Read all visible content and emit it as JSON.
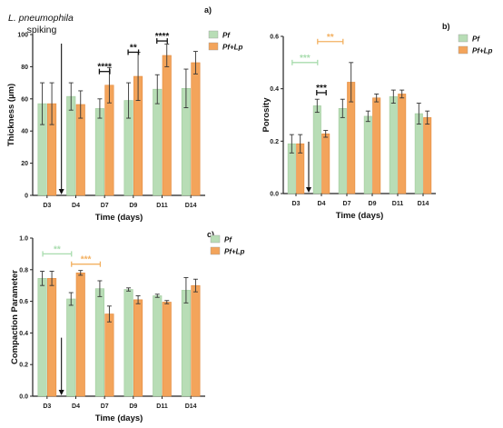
{
  "chart_data": [
    {
      "type": "bar",
      "panel_label": "a)",
      "categories": [
        "D3",
        "D4",
        "D7",
        "D9",
        "D11",
        "D14"
      ],
      "xlabel": "Time (days)",
      "ylabel": "Thickness (µm)",
      "ylim": [
        0,
        100
      ],
      "yticks": [
        0,
        20,
        40,
        60,
        80,
        100
      ],
      "ytick_labels": [
        "0",
        "20",
        "40",
        "60",
        "80",
        "100"
      ],
      "legend_position": "top-right",
      "annotation_title": "L. pneumophila",
      "annotation_sub": "spiking",
      "series": [
        {
          "name": "Pf",
          "color": "#b8ddb6",
          "values": [
            57,
            61.5,
            54,
            59,
            66,
            66.5
          ],
          "errors": [
            13,
            8.5,
            6,
            11,
            9,
            12
          ]
        },
        {
          "name": "Pf+Lp",
          "color": "#f3a45b",
          "values": [
            57,
            56.5,
            68.5,
            74,
            87,
            82.5
          ],
          "errors": [
            13,
            8.5,
            11,
            15,
            7,
            7
          ]
        }
      ],
      "significance": [
        {
          "categories": [
            "D7",
            "D7"
          ],
          "stars": "****",
          "color": "#111111",
          "level": 77
        },
        {
          "categories": [
            "D9",
            "D9"
          ],
          "stars": "**",
          "color": "#111111",
          "level": 89
        },
        {
          "categories": [
            "D11",
            "D11"
          ],
          "stars": "****",
          "color": "#111111",
          "level": 96
        }
      ]
    },
    {
      "type": "bar",
      "panel_label": "b)",
      "categories": [
        "D3",
        "D4",
        "D7",
        "D9",
        "D11",
        "D14"
      ],
      "xlabel": "Time (days)",
      "ylabel": "Porosity",
      "ylim": [
        0,
        0.6
      ],
      "yticks": [
        0,
        0.2,
        0.4,
        0.6
      ],
      "ytick_labels": [
        "0.0",
        "0.2",
        "0.4",
        "0.6"
      ],
      "legend_position": "top-right",
      "series": [
        {
          "name": "Pf",
          "color": "#b8ddb6",
          "values": [
            0.19,
            0.335,
            0.325,
            0.295,
            0.37,
            0.305
          ],
          "errors": [
            0.035,
            0.025,
            0.035,
            0.02,
            0.025,
            0.04
          ]
        },
        {
          "name": "Pf+Lp",
          "color": "#f3a45b",
          "values": [
            0.19,
            0.228,
            0.425,
            0.365,
            0.38,
            0.29
          ],
          "errors": [
            0.035,
            0.013,
            0.075,
            0.015,
            0.015,
            0.025
          ]
        }
      ],
      "significance": [
        {
          "categories": [
            "D3",
            "D4"
          ],
          "stars": "***",
          "color": "#a8dcae",
          "level": 0.5
        },
        {
          "categories": [
            "D4",
            "D7"
          ],
          "stars": "**",
          "color": "#f3b060",
          "level": 0.58
        },
        {
          "categories": [
            "D4",
            "D4"
          ],
          "stars": "***",
          "color": "#111111",
          "level": 0.385
        }
      ]
    },
    {
      "type": "bar",
      "panel_label": "c)",
      "categories": [
        "D3",
        "D4",
        "D7",
        "D9",
        "D11",
        "D14"
      ],
      "xlabel": "Time (days)",
      "ylabel": "Compaction Parameter",
      "ylim": [
        0,
        1
      ],
      "yticks": [
        0,
        0.2,
        0.4,
        0.6,
        0.8,
        1.0
      ],
      "ytick_labels": [
        "0.0",
        "0.2",
        "0.4",
        "0.6",
        "0.8",
        "1.0"
      ],
      "legend_position": "top-right",
      "series": [
        {
          "name": "Pf",
          "color": "#b8ddb6",
          "values": [
            0.745,
            0.615,
            0.68,
            0.675,
            0.635,
            0.67
          ],
          "errors": [
            0.045,
            0.04,
            0.05,
            0.01,
            0.01,
            0.08
          ]
        },
        {
          "name": "Pf+Lp",
          "color": "#f3a45b",
          "values": [
            0.745,
            0.78,
            0.52,
            0.61,
            0.595,
            0.7
          ],
          "errors": [
            0.045,
            0.015,
            0.05,
            0.025,
            0.01,
            0.04
          ]
        }
      ],
      "significance": [
        {
          "categories": [
            "D3",
            "D4"
          ],
          "stars": "**",
          "color": "#a8dcae",
          "level": 0.9
        },
        {
          "categories": [
            "D4",
            "D7"
          ],
          "stars": "***",
          "color": "#f3b060",
          "level": 0.835
        }
      ]
    }
  ]
}
